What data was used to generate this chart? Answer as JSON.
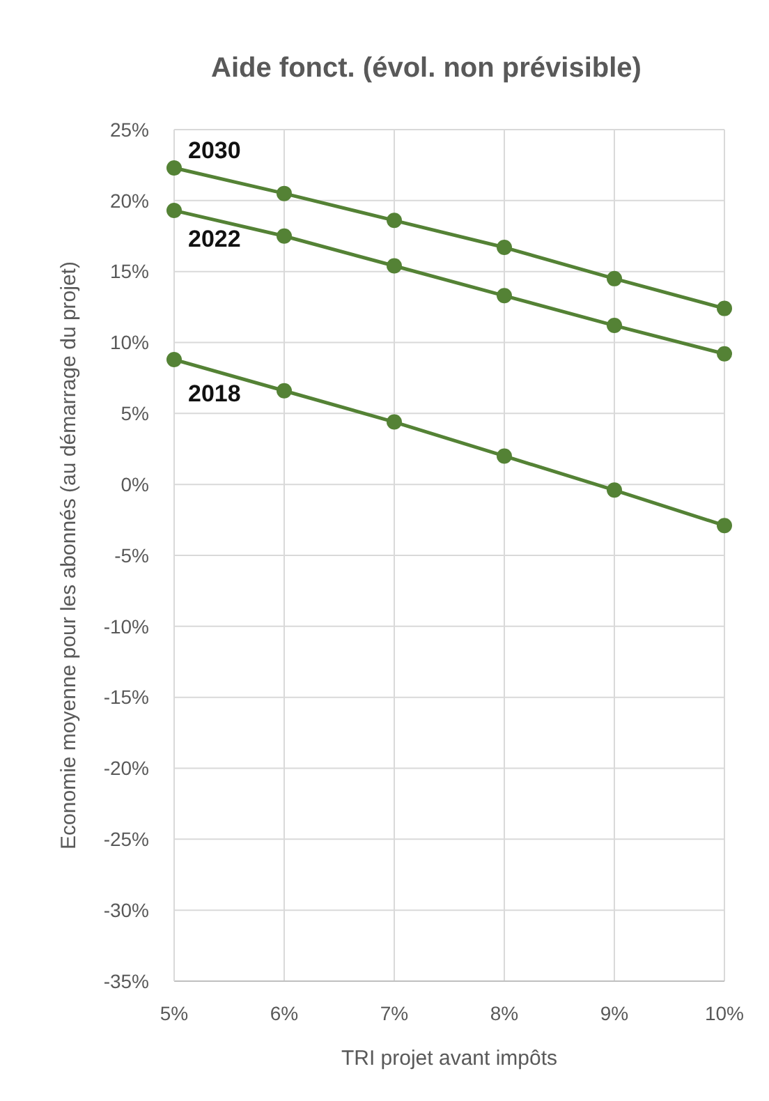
{
  "chart_data": {
    "type": "line",
    "title": "Aide fonct. (évol. non prévisible)",
    "xlabel": "TRI projet avant impôts",
    "ylabel": "Economie moyenne pour les abonnés (au démarrage du projet)",
    "x": [
      5,
      6,
      7,
      8,
      9,
      10
    ],
    "series": [
      {
        "name": "2030",
        "color": "#548235",
        "values": [
          22.3,
          20.5,
          18.6,
          16.7,
          14.5,
          12.4
        ]
      },
      {
        "name": "2022",
        "color": "#548235",
        "values": [
          19.3,
          17.5,
          15.4,
          13.3,
          11.2,
          9.2
        ]
      },
      {
        "name": "2018",
        "color": "#548235",
        "values": [
          8.8,
          6.6,
          4.4,
          2.0,
          -0.4,
          -2.9
        ]
      }
    ],
    "xlim": [
      5,
      10
    ],
    "ylim": [
      -35,
      25
    ],
    "xticks": [
      {
        "value": 5,
        "label": "5%"
      },
      {
        "value": 6,
        "label": "6%"
      },
      {
        "value": 7,
        "label": "7%"
      },
      {
        "value": 8,
        "label": "8%"
      },
      {
        "value": 9,
        "label": "9%"
      },
      {
        "value": 10,
        "label": "10%"
      }
    ],
    "yticks": [
      {
        "value": -35,
        "label": "-35%"
      },
      {
        "value": -30,
        "label": "-30%"
      },
      {
        "value": -25,
        "label": "-25%"
      },
      {
        "value": -20,
        "label": "-20%"
      },
      {
        "value": -15,
        "label": "-15%"
      },
      {
        "value": -10,
        "label": "-10%"
      },
      {
        "value": -5,
        "label": "-5%"
      },
      {
        "value": 0,
        "label": "0%"
      },
      {
        "value": 5,
        "label": "5%"
      },
      {
        "value": 10,
        "label": "10%"
      },
      {
        "value": 15,
        "label": "15%"
      },
      {
        "value": 20,
        "label": "20%"
      },
      {
        "value": 25,
        "label": "25%"
      }
    ],
    "grid": true,
    "marker": "circle",
    "line_style": "solid"
  }
}
